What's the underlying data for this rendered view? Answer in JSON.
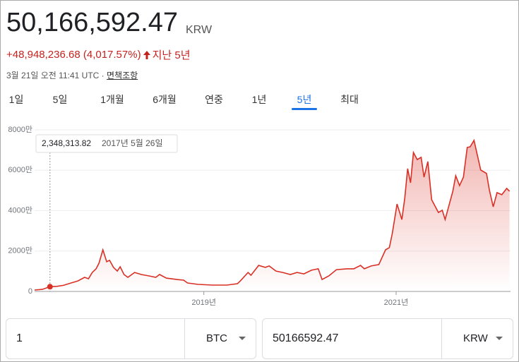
{
  "header": {
    "price": "50,166,592.47",
    "currency": "KRW",
    "change": "+48,948,236.68 (4,017.57%)",
    "period": "지난 5년",
    "date": "3월 21일 오전 11:41 UTC",
    "separator": "·",
    "disclaimer": "면책조항"
  },
  "tabs": {
    "items": [
      "1일",
      "5일",
      "1개월",
      "6개월",
      "연중",
      "1년",
      "5년",
      "최대"
    ],
    "selected": 6
  },
  "chart_data": {
    "type": "line",
    "color": "#d93025",
    "grid": true,
    "x": [
      2017.24,
      2017.32,
      2017.4,
      2017.47,
      2017.54,
      2017.62,
      2017.69,
      2017.76,
      2017.8,
      2017.84,
      2017.88,
      2017.91,
      2017.95,
      2017.99,
      2018.02,
      2018.06,
      2018.1,
      2018.13,
      2018.17,
      2018.21,
      2018.28,
      2018.35,
      2018.43,
      2018.5,
      2018.54,
      2018.61,
      2018.72,
      2018.79,
      2018.83,
      2018.94,
      2019.09,
      2019.24,
      2019.35,
      2019.38,
      2019.46,
      2019.49,
      2019.57,
      2019.64,
      2019.68,
      2019.75,
      2019.82,
      2019.9,
      2019.97,
      2020.04,
      2020.12,
      2020.19,
      2020.23,
      2020.3,
      2020.38,
      2020.49,
      2020.56,
      2020.63,
      2020.67,
      2020.74,
      2020.82,
      2020.89,
      2020.93,
      2020.96,
      2021.01,
      2021.06,
      2021.09,
      2021.12,
      2021.15,
      2021.18,
      2021.22,
      2021.26,
      2021.29,
      2021.33,
      2021.37,
      2021.44,
      2021.48,
      2021.51,
      2021.59,
      2021.62,
      2021.66,
      2021.7,
      2021.74,
      2021.77,
      2021.81,
      2021.88,
      2021.94,
      2021.97,
      2022.01,
      2022.05,
      2022.1,
      2022.15,
      2022.18
    ],
    "values": [
      700000,
      1000000,
      2348313.82,
      2500000,
      3000000,
      4200000,
      5200000,
      7000000,
      6300000,
      9400000,
      11200000,
      14000000,
      20600000,
      14700000,
      15400000,
      11900000,
      10100000,
      12200000,
      8400000,
      7000000,
      9400000,
      8400000,
      7700000,
      7000000,
      8400000,
      6600000,
      5900000,
      5600000,
      4200000,
      3500000,
      3150000,
      3150000,
      3850000,
      5200000,
      9400000,
      8000000,
      12900000,
      11900000,
      12600000,
      10100000,
      9400000,
      8400000,
      9400000,
      8700000,
      10500000,
      11200000,
      5900000,
      7700000,
      10800000,
      11200000,
      11200000,
      12900000,
      11200000,
      12600000,
      13300000,
      20600000,
      21700000,
      28600000,
      43300000,
      35600000,
      46100000,
      60800000,
      53800000,
      68800000,
      65300000,
      66400000,
      56600000,
      64300000,
      45400000,
      39100000,
      40200000,
      35600000,
      49600000,
      57300000,
      52400000,
      56600000,
      71300000,
      71600000,
      74800000,
      60100000,
      58400000,
      50300000,
      41900000,
      48900000,
      47900000,
      51000000,
      49600000
    ],
    "xlim": [
      2017.24,
      2022.19
    ],
    "xticks": [
      {
        "value": 2019,
        "label": "2019년"
      },
      {
        "value": 2021,
        "label": "2021년"
      }
    ],
    "ylim": [
      0,
      80000000
    ],
    "yticks": [
      {
        "value": 0,
        "label": "0"
      },
      {
        "value": 20000000,
        "label": "2000만"
      },
      {
        "value": 40000000,
        "label": "4000만"
      },
      {
        "value": 60000000,
        "label": "6000만"
      },
      {
        "value": 80000000,
        "label": "8000만"
      }
    ],
    "tooltip": {
      "x": 2017.4,
      "value": 2348313.82,
      "label": "2,348,313.82",
      "date": "2017년 5월 26일"
    }
  },
  "converter": {
    "amount": "1",
    "from": "BTC",
    "result": "50166592.47",
    "to": "KRW"
  }
}
